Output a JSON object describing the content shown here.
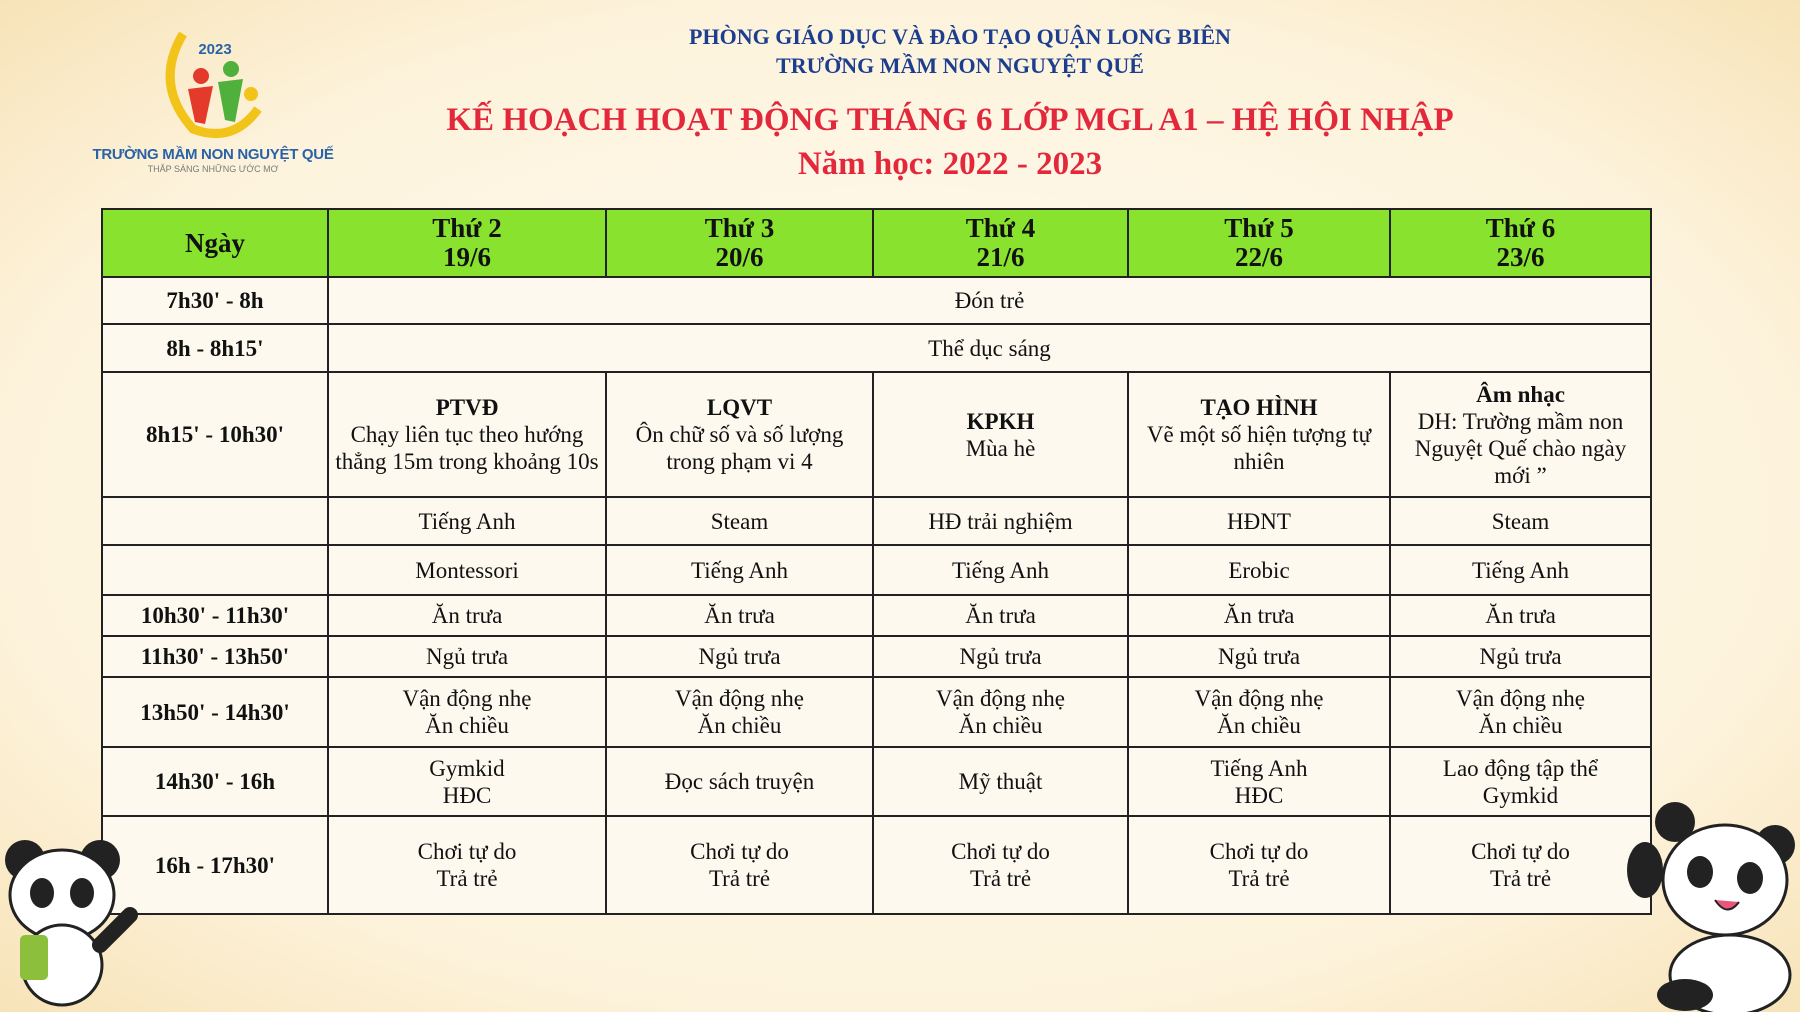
{
  "logo": {
    "year": "2023",
    "name": "TRƯỜNG MẦM NON NGUYỆT QUẾ",
    "slogan": "THẮP SÁNG NHỮNG ƯỚC MƠ"
  },
  "header": {
    "department": "PHÒNG GIÁO DỤC VÀ ĐÀO TẠO QUẬN LONG BIÊN",
    "school": "TRƯỜNG MẦM NON NGUYỆT QUẾ",
    "title": "KẾ HOẠCH HOẠT ĐỘNG THÁNG 6 LỚP MGL A1 – HỆ HỘI NHẬP",
    "year": "Năm học: 2022 - 2023"
  },
  "colors": {
    "header_green": "#88e22e",
    "title_red": "#e3283c",
    "header_blue": "#1d3e8f"
  },
  "table": {
    "columns": [
      {
        "day": "Ngày",
        "date": ""
      },
      {
        "day": "Thứ 2",
        "date": "19/6"
      },
      {
        "day": "Thứ 3",
        "date": "20/6"
      },
      {
        "day": "Thứ 4",
        "date": "21/6"
      },
      {
        "day": "Thứ 5",
        "date": "22/6"
      },
      {
        "day": "Thứ 6",
        "date": "23/6"
      }
    ],
    "merged_rows": [
      {
        "time": "7h30' - 8h",
        "activity": "Đón trẻ"
      },
      {
        "time": "8h - 8h15'",
        "activity": "Thể dục sáng"
      }
    ],
    "lesson_row": {
      "time": "8h15' - 10h30'",
      "cells": [
        {
          "subject": "PTVĐ",
          "detail": "Chạy liên tục theo hướng thẳng 15m trong khoảng 10s"
        },
        {
          "subject": "LQVT",
          "detail": "Ôn chữ số và số lượng trong phạm vi 4"
        },
        {
          "subject": "KPKH",
          "detail": "Mùa hè"
        },
        {
          "subject": "TẠO HÌNH",
          "detail": "Vẽ một số hiện tượng tự nhiên"
        },
        {
          "subject": "Âm nhạc",
          "detail": "DH: Trường mầm non Nguyệt Quế chào ngày mới ”"
        }
      ]
    },
    "rows": [
      {
        "time": "",
        "cells": [
          [
            "Tiếng Anh"
          ],
          [
            "Steam"
          ],
          [
            "HĐ trải nghiệm"
          ],
          [
            "HĐNT"
          ],
          [
            "Steam"
          ]
        ]
      },
      {
        "time": "",
        "cells": [
          [
            "Montessori"
          ],
          [
            "Tiếng Anh"
          ],
          [
            "Tiếng Anh"
          ],
          [
            "Erobic"
          ],
          [
            "Tiếng Anh"
          ]
        ]
      },
      {
        "time": "10h30' - 11h30'",
        "cells": [
          [
            "Ăn trưa"
          ],
          [
            "Ăn trưa"
          ],
          [
            "Ăn trưa"
          ],
          [
            "Ăn trưa"
          ],
          [
            "Ăn trưa"
          ]
        ]
      },
      {
        "time": "11h30' - 13h50'",
        "cells": [
          [
            "Ngủ trưa"
          ],
          [
            "Ngủ trưa"
          ],
          [
            "Ngủ trưa"
          ],
          [
            "Ngủ trưa"
          ],
          [
            "Ngủ trưa"
          ]
        ]
      },
      {
        "time": "13h50' - 14h30'",
        "cells": [
          [
            "Vận động nhẹ",
            "Ăn chiều"
          ],
          [
            "Vận động nhẹ",
            "Ăn chiều"
          ],
          [
            "Vận động nhẹ",
            "Ăn chiều"
          ],
          [
            "Vận động nhẹ",
            "Ăn chiều"
          ],
          [
            "Vận động nhẹ",
            "Ăn chiều"
          ]
        ]
      },
      {
        "time": "14h30' - 16h",
        "cells": [
          [
            "Gymkid",
            "HĐC"
          ],
          [
            "Đọc sách truyện"
          ],
          [
            "Mỹ thuật"
          ],
          [
            "Tiếng Anh",
            "HĐC"
          ],
          [
            "Lao động tập thể",
            "Gymkid"
          ]
        ]
      },
      {
        "time": "16h - 17h30'",
        "cells": [
          [
            "Chơi tự do",
            "Trả trẻ"
          ],
          [
            "Chơi tự do",
            "Trả trẻ"
          ],
          [
            "Chơi tự do",
            "Trả trẻ"
          ],
          [
            "Chơi tự do",
            "Trả trẻ"
          ],
          [
            "Chơi tự do",
            "Trả trẻ"
          ]
        ]
      }
    ]
  }
}
